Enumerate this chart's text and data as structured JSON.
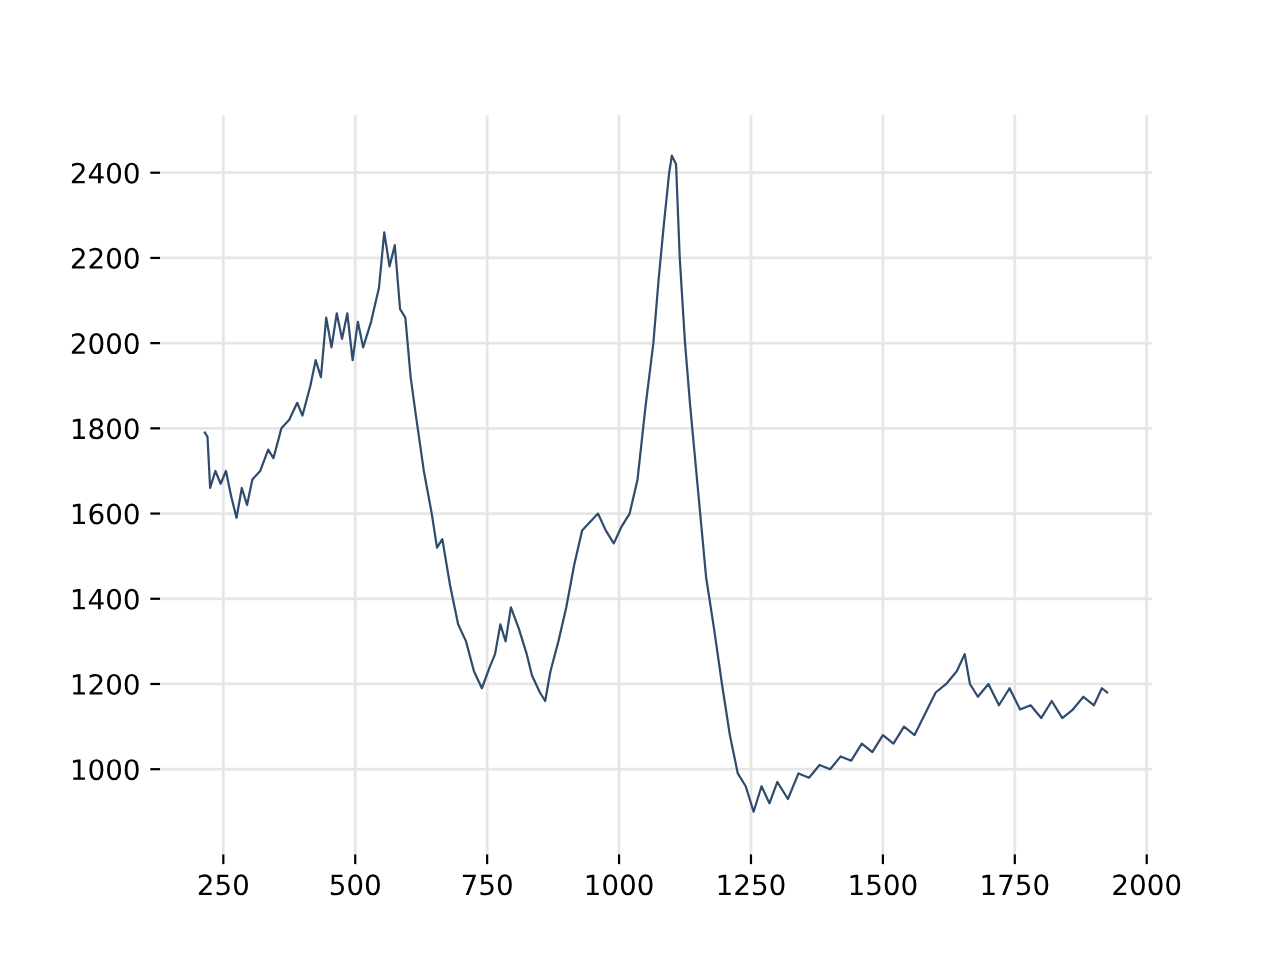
{
  "chart_data": {
    "type": "line",
    "x": [
      215,
      220,
      225,
      235,
      245,
      255,
      265,
      275,
      285,
      295,
      305,
      320,
      335,
      345,
      360,
      375,
      390,
      400,
      415,
      425,
      435,
      445,
      455,
      465,
      475,
      485,
      495,
      505,
      515,
      530,
      545,
      555,
      565,
      575,
      585,
      595,
      605,
      615,
      630,
      645,
      655,
      665,
      680,
      695,
      710,
      725,
      740,
      755,
      765,
      775,
      785,
      795,
      810,
      825,
      835,
      850,
      860,
      870,
      885,
      900,
      915,
      930,
      945,
      960,
      975,
      990,
      1005,
      1020,
      1035,
      1050,
      1065,
      1075,
      1085,
      1095,
      1100,
      1108,
      1115,
      1125,
      1135,
      1150,
      1165,
      1180,
      1195,
      1210,
      1225,
      1240,
      1255,
      1270,
      1285,
      1300,
      1320,
      1340,
      1360,
      1380,
      1400,
      1420,
      1440,
      1460,
      1480,
      1500,
      1520,
      1540,
      1560,
      1580,
      1600,
      1620,
      1640,
      1655,
      1665,
      1680,
      1700,
      1720,
      1740,
      1760,
      1780,
      1800,
      1820,
      1840,
      1860,
      1880,
      1900,
      1915,
      1925
    ],
    "series": [
      {
        "color": "#2f4b6e",
        "values": [
          1790,
          1780,
          1660,
          1700,
          1670,
          1700,
          1640,
          1590,
          1660,
          1620,
          1680,
          1700,
          1750,
          1730,
          1800,
          1820,
          1860,
          1830,
          1900,
          1960,
          1920,
          2060,
          1990,
          2070,
          2010,
          2070,
          1960,
          2050,
          1990,
          2050,
          2130,
          2260,
          2180,
          2230,
          2080,
          2060,
          1920,
          1830,
          1700,
          1600,
          1520,
          1540,
          1430,
          1340,
          1300,
          1230,
          1190,
          1240,
          1270,
          1340,
          1300,
          1380,
          1330,
          1270,
          1220,
          1180,
          1160,
          1230,
          1300,
          1380,
          1480,
          1560,
          1580,
          1600,
          1560,
          1530,
          1570,
          1600,
          1680,
          1850,
          2000,
          2150,
          2280,
          2400,
          2440,
          2420,
          2200,
          2000,
          1850,
          1650,
          1450,
          1330,
          1200,
          1080,
          990,
          960,
          900,
          960,
          920,
          970,
          930,
          990,
          980,
          1010,
          1000,
          1030,
          1020,
          1060,
          1040,
          1080,
          1060,
          1100,
          1080,
          1130,
          1180,
          1200,
          1230,
          1270,
          1200,
          1170,
          1200,
          1150,
          1190,
          1140,
          1150,
          1120,
          1160,
          1120,
          1140,
          1170,
          1150,
          1190,
          1180
        ]
      }
    ],
    "xlim": [
      130,
      2010
    ],
    "ylim": [
      800,
      2535
    ],
    "xticks": [
      250,
      500,
      750,
      1000,
      1250,
      1500,
      1750,
      2000
    ],
    "yticks": [
      1000,
      1200,
      1400,
      1600,
      1800,
      2000,
      2200,
      2400
    ],
    "grid": true
  }
}
